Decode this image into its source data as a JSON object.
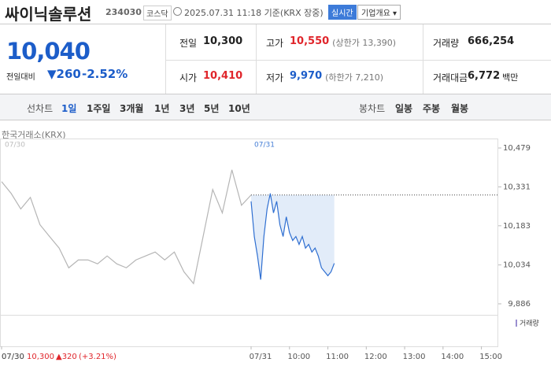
{
  "header": {
    "name": "싸이닉솔루션",
    "code": "234030",
    "market": "코스닥",
    "timestamp": "2025.07.31 11:18 기준(KRX 장중)",
    "realtime": "실시간",
    "company_button": "기업개요"
  },
  "quote": {
    "price": "10,040",
    "change_label": "전일대비",
    "change": "260",
    "change_rate": "-2.52%"
  },
  "stats": [
    {
      "label": "전일",
      "value": "10,300"
    },
    {
      "label": "고가",
      "value": "10,550",
      "extra": "(상한가 13,390)"
    },
    {
      "label": "거래량",
      "value": "666,254"
    },
    {
      "label": "시가",
      "value": "10,410"
    },
    {
      "label": "저가",
      "value": "9,970",
      "extra": "(하한가 7,210)"
    },
    {
      "label": "거래대금",
      "value": "6,772",
      "unit": "백만"
    }
  ],
  "tabs": {
    "line_label": "선차트",
    "line": [
      "1일",
      "1주일",
      "3개월",
      "1년",
      "3년",
      "5년",
      "10년"
    ],
    "candle_label": "봉차트",
    "candle": [
      "일봉",
      "주봉",
      "월봉"
    ]
  },
  "chart_data": {
    "type": "line",
    "source": "한국거래소(KRX)",
    "xlim": [
      -390,
      390
    ],
    "ylim": [
      9844,
      10515
    ],
    "xticks": [
      {
        "value": -390,
        "label": "07/30"
      },
      {
        "value": 0,
        "label": "07/31"
      },
      {
        "value": 60,
        "label": "10:00"
      },
      {
        "value": 120,
        "label": "11:00"
      },
      {
        "value": 180,
        "label": "12:00"
      },
      {
        "value": 240,
        "label": "13:00"
      },
      {
        "value": 300,
        "label": "14:00"
      },
      {
        "value": 360,
        "label": "15:00"
      }
    ],
    "yticks": [
      {
        "value": 10479,
        "label": "10,479"
      },
      {
        "value": 10331,
        "label": "10,331"
      },
      {
        "value": 10183,
        "label": "10,183"
      },
      {
        "value": 10034,
        "label": "10,034"
      },
      {
        "value": 9886,
        "label": "9,886"
      }
    ],
    "reference": 10300,
    "series": [
      {
        "name": "07/30",
        "color": "#b5b5b5",
        "x": [
          -390,
          -375,
          -360,
          -345,
          -330,
          -315,
          -300,
          -285,
          -270,
          -255,
          -240,
          -225,
          -210,
          -195,
          -180,
          -165,
          -150,
          -135,
          -120,
          -105,
          -90,
          -75,
          -60,
          -45,
          -30,
          -15,
          0
        ],
        "values": [
          10351,
          10306,
          10247,
          10291,
          10187,
          10142,
          10098,
          10023,
          10053,
          10053,
          10038,
          10068,
          10038,
          10023,
          10053,
          10068,
          10083,
          10053,
          10083,
          10008,
          9963,
          10142,
          10321,
          10232,
          10396,
          10261,
          10300
        ]
      },
      {
        "name": "07/31",
        "color": "#2f6fd1",
        "x": [
          0,
          5,
          10,
          15,
          20,
          25,
          30,
          35,
          40,
          45,
          50,
          55,
          60,
          65,
          70,
          75,
          80,
          85,
          90,
          95,
          100,
          105,
          110,
          115,
          120,
          125,
          130
        ],
        "values": [
          10276,
          10142,
          10068,
          9978,
          10142,
          10247,
          10306,
          10232,
          10276,
          10187,
          10142,
          10217,
          10157,
          10127,
          10142,
          10112,
          10142,
          10098,
          10112,
          10083,
          10098,
          10068,
          10023,
          10008,
          9993,
          10008,
          10040
        ]
      }
    ],
    "volume_legend": "거래량",
    "footer": {
      "date": "07/30",
      "price": "10,300",
      "change": "▲320",
      "rate": "(+3.21%)"
    }
  }
}
